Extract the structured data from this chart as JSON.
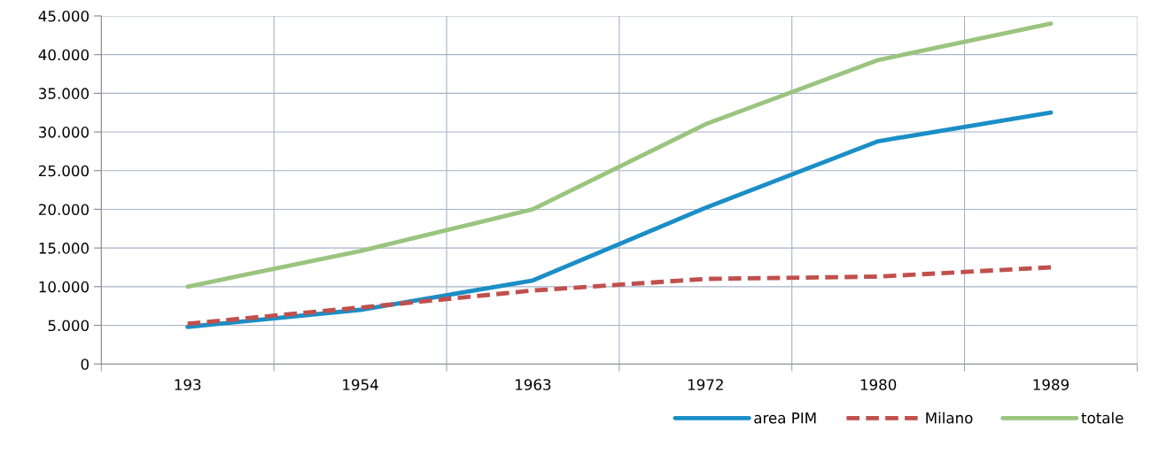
{
  "chart_data": {
    "type": "line",
    "categories": [
      "193",
      "1954",
      "1963",
      "1972",
      "1980",
      "1989"
    ],
    "series": [
      {
        "name": "area PIM",
        "color": "#1b8ec6",
        "values": [
          4800,
          7000,
          10800,
          20200,
          28800,
          32500
        ]
      },
      {
        "name": "Milano",
        "color": "#c0504d",
        "line_style": "dashed",
        "values": [
          5200,
          7300,
          9500,
          11000,
          11300,
          12500
        ]
      },
      {
        "name": "totale",
        "color": "#9bc47f",
        "values": [
          10000,
          14600,
          20000,
          31000,
          39300,
          44000
        ]
      }
    ],
    "ylim": [
      0,
      45000
    ],
    "yticks": [
      0,
      {
        "value": 5000,
        "label": "5.000"
      },
      {
        "value": 10000,
        "label": "10.000"
      },
      {
        "value": 15000,
        "label": "15.000"
      },
      {
        "value": 20000,
        "label": "20.000"
      },
      {
        "value": 25000,
        "label": "25.000"
      },
      {
        "value": 30000,
        "label": "30.000"
      },
      {
        "value": 35000,
        "label": "35.000"
      },
      {
        "value": 40000,
        "label": "40.000"
      },
      {
        "value": 45000,
        "label": "45.000"
      }
    ],
    "grid": true,
    "legend": "bottom right",
    "marker": "none",
    "line_style": "solid"
  }
}
